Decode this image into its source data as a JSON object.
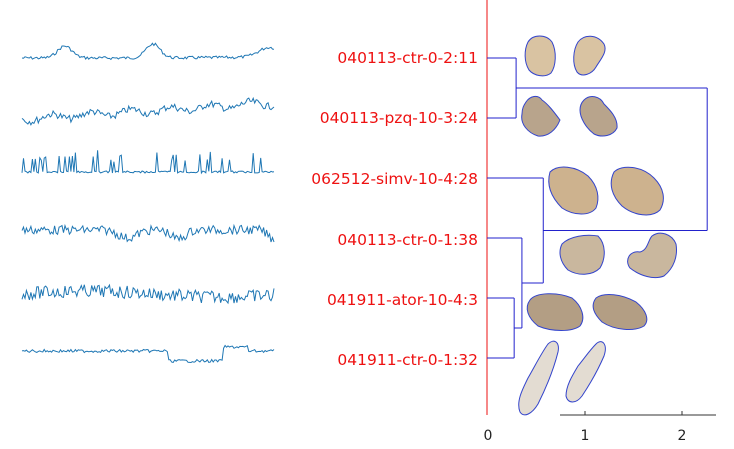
{
  "colors": {
    "trace": "#1f77b4",
    "label": "#ee1111",
    "dendrogram": "#2222cc",
    "axis": "#333333",
    "outline": "#3344cc",
    "cell_fill": "#d8c4a8"
  },
  "samples": [
    {
      "label": "040113-ctr-0-2:11",
      "trace_kind": "smooth_bumps"
    },
    {
      "label": "040113-pzq-10-3:24",
      "trace_kind": "rising_noisy"
    },
    {
      "label": "062512-simv-10-4:28",
      "trace_kind": "spikes"
    },
    {
      "label": "040113-ctr-0-1:38",
      "trace_kind": "noisy_dip"
    },
    {
      "label": "041911-ator-10-4:3",
      "trace_kind": "very_noisy"
    },
    {
      "label": "041911-ctr-0-1:32",
      "trace_kind": "step_dip"
    }
  ],
  "x_axis": {
    "ticks": [
      "0",
      "1",
      "2"
    ],
    "range": [
      0,
      2.3
    ]
  },
  "dendrogram": {
    "leaves": 6,
    "merges": [
      {
        "a": 0,
        "b": 1,
        "height": 0.3
      },
      {
        "a": 4,
        "b": 5,
        "height": 0.28
      },
      {
        "a": 3,
        "b": "m1",
        "height": 0.36
      },
      {
        "a": 2,
        "b": "m2",
        "height": 0.58
      },
      {
        "a": "m0",
        "b": "m3",
        "height": 2.27
      }
    ]
  }
}
